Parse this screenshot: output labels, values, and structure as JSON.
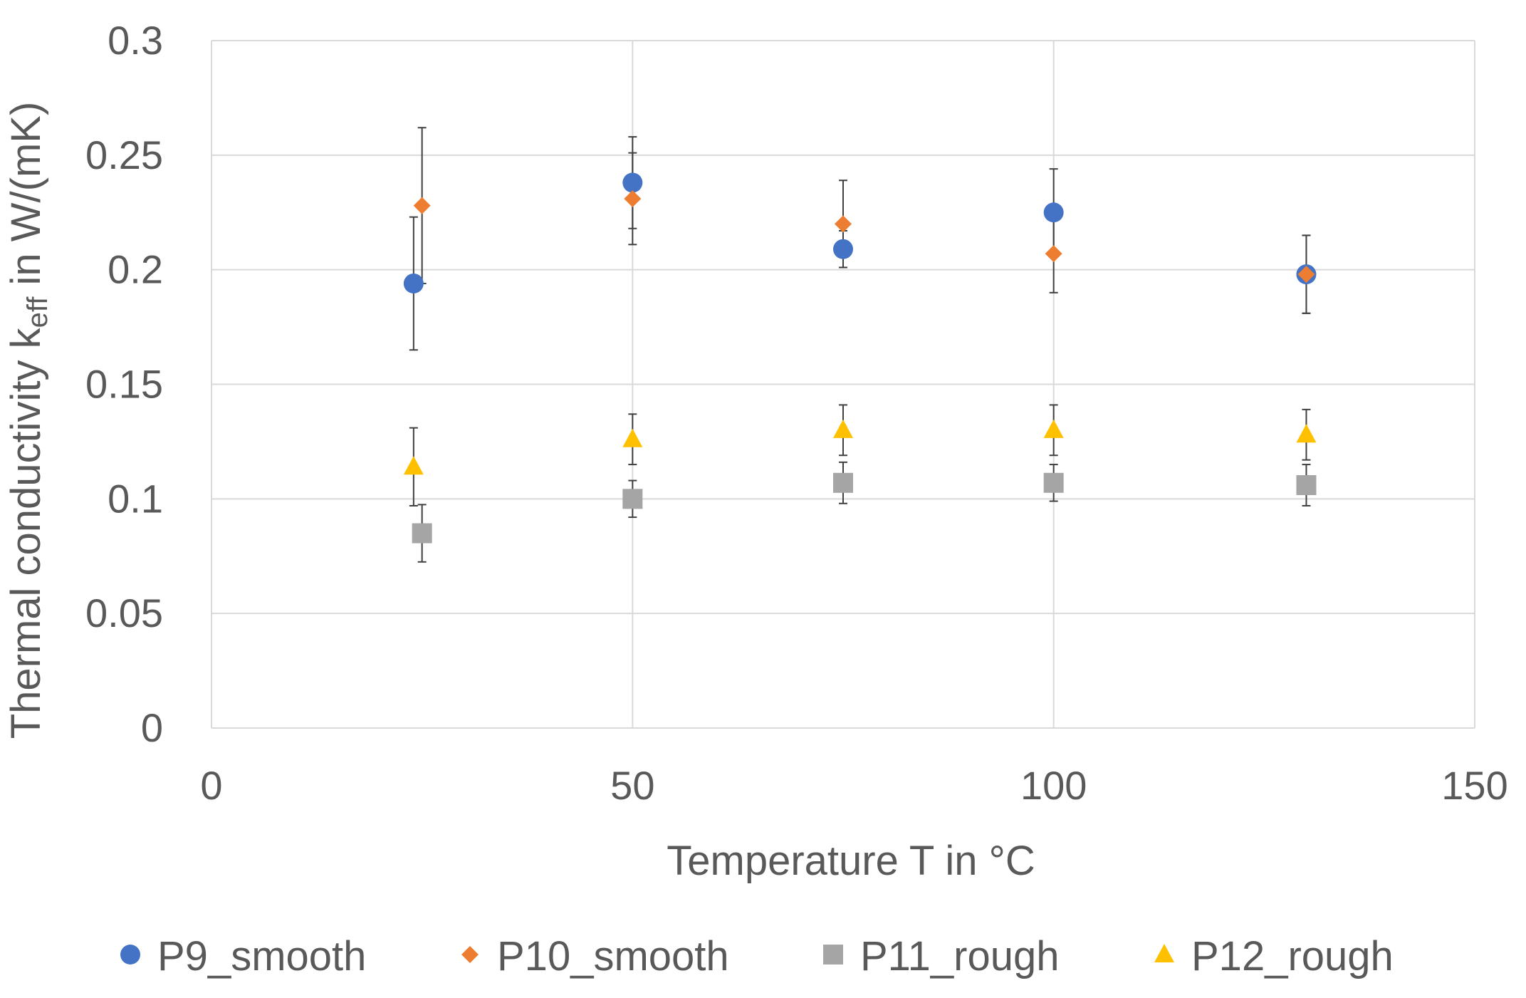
{
  "chart_data": {
    "type": "scatter",
    "title": "",
    "xlabel": "Temperature T in °C",
    "ylabel_prefix": "Thermal conductivity k",
    "ylabel_subscript": "eff",
    "ylabel_suffix": " in W/(mK)",
    "xlim": [
      0,
      150
    ],
    "ylim": [
      0,
      0.3
    ],
    "x_ticks": [
      0,
      50,
      100,
      150
    ],
    "x_tick_labels": [
      "0",
      "50",
      "100",
      "150"
    ],
    "y_ticks": [
      0,
      0.05,
      0.1,
      0.15,
      0.2,
      0.25,
      0.3
    ],
    "y_tick_labels": [
      "0",
      "0.05",
      "0.1",
      "0.15",
      "0.2",
      "0.25",
      "0.3"
    ],
    "grid": true,
    "legend_position": "bottom",
    "series": [
      {
        "name": "P9_smooth",
        "marker": "circle",
        "color": "#4472C4",
        "points": [
          {
            "x": 24,
            "y": 0.194,
            "err": 0.029
          },
          {
            "x": 50,
            "y": 0.238,
            "err": 0.02
          },
          {
            "x": 75,
            "y": 0.209,
            "err": 0.008
          },
          {
            "x": 100,
            "y": 0.225,
            "err": 0.019
          },
          {
            "x": 130,
            "y": 0.198,
            "err": 0.017
          }
        ]
      },
      {
        "name": "P10_smooth",
        "marker": "diamond",
        "color": "#ED7D31",
        "points": [
          {
            "x": 25,
            "y": 0.228,
            "err": 0.034
          },
          {
            "x": 50,
            "y": 0.231,
            "err": 0.02
          },
          {
            "x": 75,
            "y": 0.22,
            "err": 0.019
          },
          {
            "x": 100,
            "y": 0.207,
            "err": 0.017
          },
          {
            "x": 130,
            "y": 0.198,
            "err": 0.017
          }
        ]
      },
      {
        "name": "P11_rough",
        "marker": "square",
        "color": "#A5A5A5",
        "points": [
          {
            "x": 25,
            "y": 0.085,
            "err": 0.0125
          },
          {
            "x": 50,
            "y": 0.1,
            "err": 0.008
          },
          {
            "x": 75,
            "y": 0.107,
            "err": 0.009
          },
          {
            "x": 100,
            "y": 0.107,
            "err": 0.008
          },
          {
            "x": 130,
            "y": 0.106,
            "err": 0.009
          }
        ]
      },
      {
        "name": "P12_rough",
        "marker": "triangle",
        "color": "#FFC000",
        "points": [
          {
            "x": 24,
            "y": 0.114,
            "err": 0.017
          },
          {
            "x": 50,
            "y": 0.126,
            "err": 0.011
          },
          {
            "x": 75,
            "y": 0.13,
            "err": 0.011
          },
          {
            "x": 100,
            "y": 0.13,
            "err": 0.011
          },
          {
            "x": 130,
            "y": 0.128,
            "err": 0.011
          }
        ]
      }
    ]
  }
}
